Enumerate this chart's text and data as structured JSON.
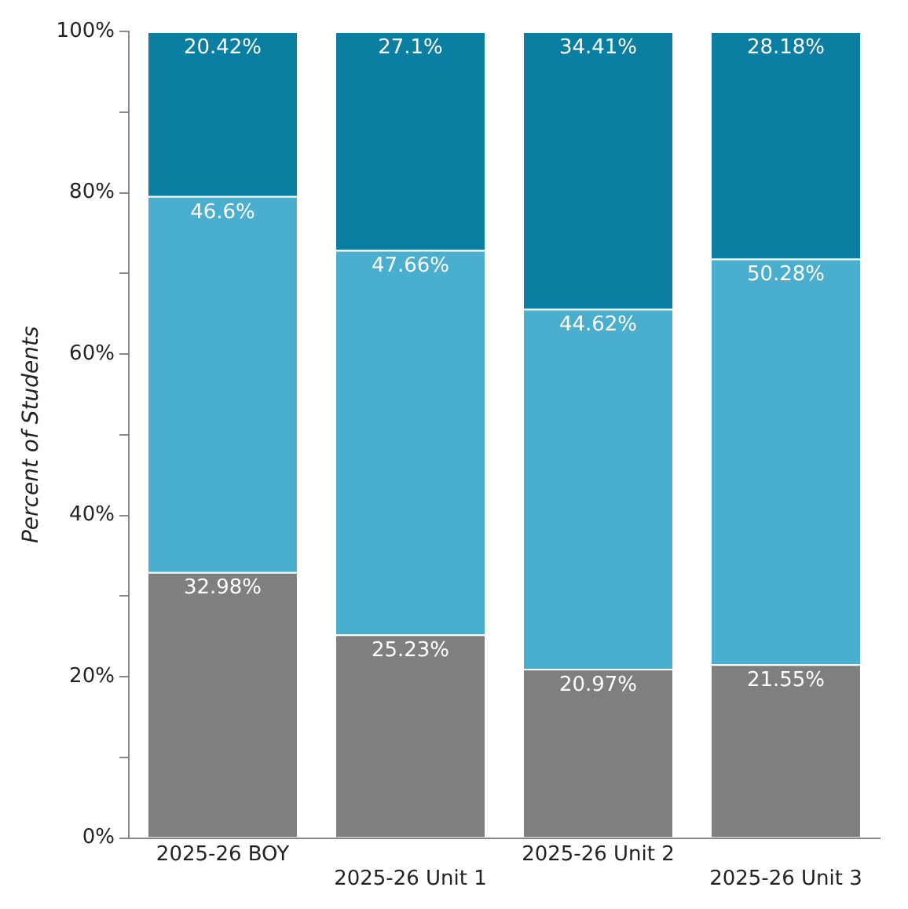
{
  "chart_data": {
    "type": "bar",
    "stacked": true,
    "ylabel": "Percent of Students",
    "categories": [
      "2025-26 BOY",
      "2025-26 Unit 1",
      "2025-26 Unit 2",
      "2025-26 Unit 3"
    ],
    "series": [
      {
        "color": "#7f7f7f",
        "values": [
          32.98,
          25.23,
          20.97,
          21.55
        ],
        "value_labels": [
          "32.98%",
          "25.23%",
          "20.97%",
          "21.55%"
        ]
      },
      {
        "color": "#4aafce",
        "values": [
          46.6,
          47.66,
          44.62,
          50.28
        ],
        "value_labels": [
          "46.6%",
          "47.66%",
          "44.62%",
          "50.28%"
        ]
      },
      {
        "color": "#0a7fa2",
        "values": [
          20.42,
          27.1,
          34.41,
          28.18
        ],
        "value_labels": [
          "20.42%",
          "27.1%",
          "34.41%",
          "28.18%"
        ]
      }
    ],
    "ylim": [
      0,
      100
    ],
    "yticks": [
      {
        "value": 0,
        "label": "0%"
      },
      {
        "value": 10,
        "label": null
      },
      {
        "value": 20,
        "label": "20%"
      },
      {
        "value": 30,
        "label": null
      },
      {
        "value": 40,
        "label": "40%"
      },
      {
        "value": 50,
        "label": null
      },
      {
        "value": 60,
        "label": "60%"
      },
      {
        "value": 70,
        "label": null
      },
      {
        "value": 80,
        "label": "80%"
      },
      {
        "value": 90,
        "label": null
      },
      {
        "value": 100,
        "label": "100%"
      }
    ],
    "grid": false,
    "legend": false
  }
}
